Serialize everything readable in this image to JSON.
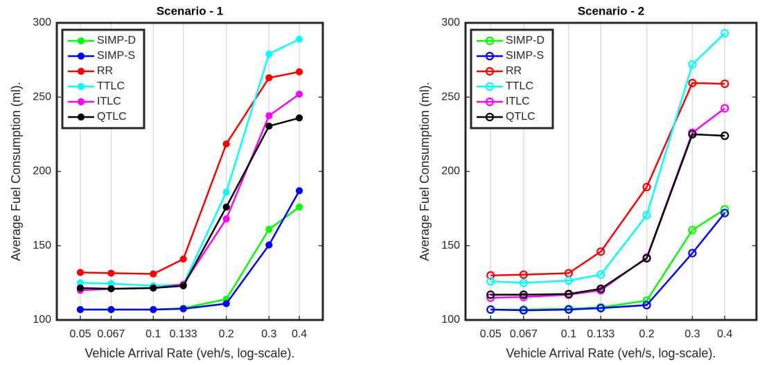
{
  "chart_data": [
    {
      "type": "line",
      "title": "Scenario - 1",
      "xlabel": "Vehicle Arrival Rate (veh/s, log-scale).",
      "ylabel": "Average Fuel Consumption (ml).",
      "xscale": "log",
      "xgrid": true,
      "legend": "upper-left",
      "marker_fill": true,
      "x": [
        0.05,
        0.067,
        0.1,
        0.133,
        0.2,
        0.3,
        0.4
      ],
      "xlim": [
        0.04,
        0.5
      ],
      "xticks": [
        0.05,
        0.067,
        0.1,
        0.133,
        0.2,
        0.3,
        0.4
      ],
      "ylim": [
        100,
        300
      ],
      "yticks": [
        100,
        150,
        200,
        250,
        300
      ],
      "series": [
        {
          "name": "SIMP-D",
          "color": "#00ff00",
          "values": [
            107,
            107,
            107,
            108,
            114,
            161,
            176
          ]
        },
        {
          "name": "SIMP-S",
          "color": "#0000ff",
          "values": [
            107,
            107,
            107,
            107.5,
            111,
            150.5,
            187
          ]
        },
        {
          "name": "RR",
          "color": "#ff0000",
          "values": [
            132,
            131.5,
            131,
            141,
            218.5,
            263,
            267
          ]
        },
        {
          "name": "TTLC",
          "color": "#00ffff",
          "values": [
            125,
            124.5,
            123,
            124,
            186,
            279,
            289
          ]
        },
        {
          "name": "ITLC",
          "color": "#ff00ff",
          "values": [
            120,
            121,
            121.5,
            124,
            168,
            237.5,
            252
          ]
        },
        {
          "name": "QTLC",
          "color": "#000000",
          "values": [
            121.5,
            121,
            121.5,
            123,
            176,
            230.5,
            236
          ]
        }
      ]
    },
    {
      "type": "line",
      "title": "Scenario - 2",
      "xlabel": "Vehicle Arrival Rate (veh/s, log-scale).",
      "ylabel": "Average Fuel Consumption (ml).",
      "xscale": "log",
      "xgrid": true,
      "legend": "upper-left",
      "marker_fill": false,
      "x": [
        0.05,
        0.067,
        0.1,
        0.133,
        0.2,
        0.3,
        0.4
      ],
      "xlim": [
        0.04,
        0.53
      ],
      "xticks": [
        0.05,
        0.067,
        0.1,
        0.133,
        0.2,
        0.3,
        0.4
      ],
      "ylim": [
        100,
        300
      ],
      "yticks": [
        100,
        150,
        200,
        250,
        300
      ],
      "series": [
        {
          "name": "SIMP-D",
          "color": "#00ff00",
          "values": [
            107,
            107,
            107.5,
            108.5,
            113,
            160.5,
            174.5
          ]
        },
        {
          "name": "SIMP-S",
          "color": "#0000ff",
          "values": [
            107,
            106.5,
            107,
            108,
            110,
            145,
            172
          ]
        },
        {
          "name": "RR",
          "color": "#ff0000",
          "values": [
            130,
            130.5,
            131.5,
            146,
            189.5,
            259.5,
            259
          ]
        },
        {
          "name": "TTLC",
          "color": "#00ffff",
          "values": [
            126,
            125,
            126.5,
            130.5,
            170.5,
            272,
            293
          ]
        },
        {
          "name": "ITLC",
          "color": "#ff00ff",
          "values": [
            115,
            115.5,
            117,
            120,
            142,
            226,
            242.5
          ]
        },
        {
          "name": "QTLC",
          "color": "#000000",
          "values": [
            117,
            117,
            117.5,
            121,
            141.5,
            225,
            224
          ]
        }
      ]
    }
  ]
}
